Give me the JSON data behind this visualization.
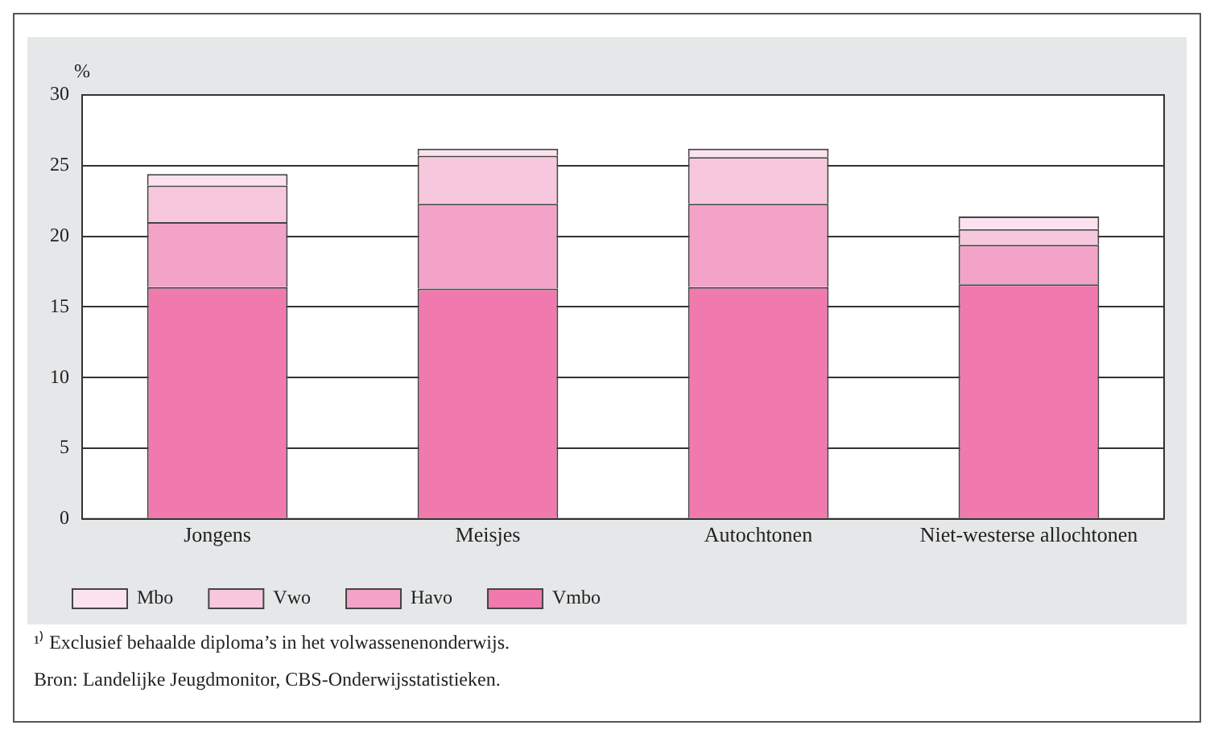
{
  "chart_data": {
    "type": "bar",
    "stacked": true,
    "ylabel": "%",
    "categories": [
      "Jongens",
      "Meisjes",
      "Autochtonen",
      "Niet-westerse allochtonen"
    ],
    "series": [
      {
        "name": "Vmbo",
        "color": "#f07aae",
        "values": [
          16.4,
          16.3,
          16.4,
          16.6
        ]
      },
      {
        "name": "Havo",
        "color": "#f4a3c8",
        "values": [
          4.6,
          6.0,
          5.9,
          2.8
        ]
      },
      {
        "name": "Vwo",
        "color": "#f7c8dd",
        "values": [
          2.6,
          3.4,
          3.3,
          1.1
        ]
      },
      {
        "name": "Mbo",
        "color": "#fbe2ee",
        "values": [
          0.8,
          0.5,
          0.6,
          0.9
        ]
      }
    ],
    "ylim": [
      0,
      30
    ],
    "yticks": [
      0,
      5,
      10,
      15,
      20,
      25,
      30
    ],
    "grid": "y",
    "legend": "bottom",
    "annotations": [
      "¹⁾ Exclusief behaalde diploma’s in het volwassenenonderwijs.",
      "Bron: Landelijke Jeugdmonitor, CBS-Onderwijsstatistieken."
    ]
  }
}
